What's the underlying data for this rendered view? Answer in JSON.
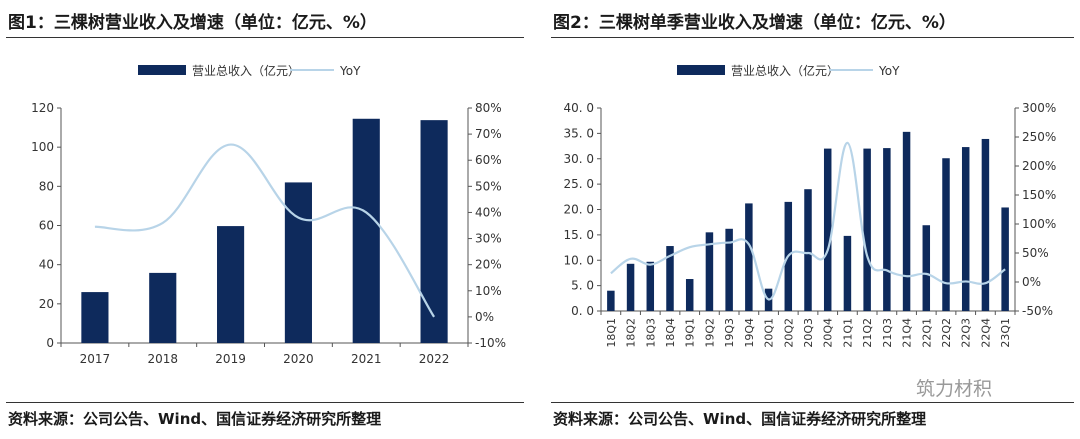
{
  "charts": [
    {
      "title": "图1：三棵树营业收入及增速（单位：亿元、%）",
      "source": "资料来源：公司公告、Wind、国信证券经济研究所整理"
    },
    {
      "title": "图2：三棵树单季营业收入及增速（单位：亿元、%）",
      "source": "资料来源：公司公告、Wind、国信证券经济研究所整理"
    }
  ],
  "watermark": "筑力材积",
  "colors": {
    "bar": "#0e2a5c",
    "line": "#b8d4e8",
    "axis": "#555555",
    "text": "#333333"
  },
  "chart_data": [
    {
      "type": "bar",
      "categories": [
        "2017",
        "2018",
        "2019",
        "2020",
        "2021",
        "2022"
      ],
      "series": [
        {
          "name": "营业总收入（亿元）",
          "type": "bar",
          "axis": "left",
          "values": [
            26,
            35.8,
            59.7,
            82,
            114.5,
            113.8
          ]
        },
        {
          "name": "YoY",
          "type": "line",
          "axis": "right",
          "values": [
            34.5,
            36,
            66,
            38,
            40,
            0
          ]
        }
      ],
      "y_left": {
        "min": 0,
        "max": 120,
        "ticks": [
          "0",
          "20",
          "40",
          "60",
          "80",
          "100",
          "120"
        ]
      },
      "y_right": {
        "min": -10,
        "max": 80,
        "ticks": [
          "-10%",
          "0%",
          "10%",
          "20%",
          "30%",
          "40%",
          "50%",
          "60%",
          "70%",
          "80%"
        ]
      },
      "legend": "top-center",
      "grid": false
    },
    {
      "type": "bar",
      "categories": [
        "18Q1",
        "18Q2",
        "18Q3",
        "18Q4",
        "19Q1",
        "19Q2",
        "19Q3",
        "19Q4",
        "20Q1",
        "20Q2",
        "20Q3",
        "20Q4",
        "21Q1",
        "21Q2",
        "21Q3",
        "21Q4",
        "22Q1",
        "22Q2",
        "22Q3",
        "22Q4",
        "23Q1"
      ],
      "series": [
        {
          "name": "营业总收入（亿元）",
          "type": "bar",
          "axis": "left",
          "values": [
            4.0,
            9.3,
            9.7,
            12.8,
            6.3,
            15.5,
            16.2,
            21.2,
            4.4,
            21.5,
            24.0,
            32.0,
            14.8,
            32.0,
            32.1,
            35.3,
            16.9,
            30.1,
            32.3,
            33.9,
            20.4
          ]
        },
        {
          "name": "YoY",
          "type": "line",
          "axis": "right",
          "values": [
            15,
            40,
            30,
            45,
            60,
            65,
            68,
            65,
            -30,
            45,
            50,
            55,
            240,
            45,
            20,
            10,
            14,
            -2,
            1,
            -2,
            22
          ]
        }
      ],
      "y_left": {
        "min": 0,
        "max": 40,
        "ticks": [
          "0. 0",
          "5. 0",
          "10. 0",
          "15. 0",
          "20. 0",
          "25. 0",
          "30. 0",
          "35. 0",
          "40. 0"
        ]
      },
      "y_right": {
        "min": -50,
        "max": 300,
        "ticks": [
          "-50%",
          "0%",
          "50%",
          "100%",
          "150%",
          "200%",
          "250%",
          "300%"
        ]
      },
      "legend": "top-center",
      "grid": false
    }
  ]
}
